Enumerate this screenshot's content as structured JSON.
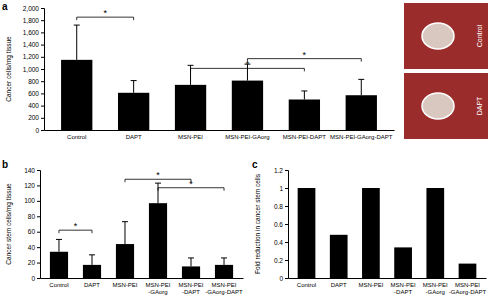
{
  "chart_data": [
    {
      "type": "bar",
      "title": "a",
      "y_label": "Cancer cells/mg tissue",
      "categories": [
        "Control",
        "DAPT",
        "MSN-PEI",
        "MSN-PEI-GAorg",
        "MSN-PEI-DAPT",
        "MSN-PEI-GAorg-DAPT"
      ],
      "values": [
        1150,
        610,
        740,
        810,
        500,
        570
      ],
      "errors": [
        570,
        200,
        320,
        270,
        140,
        260
      ],
      "color": "#000000",
      "ylim": [
        0,
        2000
      ],
      "yticks": [
        0,
        200,
        400,
        600,
        800,
        {
          "value": 1000,
          "label": "1,000"
        },
        {
          "value": 1200,
          "label": "1,200"
        },
        {
          "value": 1400,
          "label": "1,400"
        },
        {
          "value": 1600,
          "label": "1,600"
        },
        {
          "value": 1800,
          "label": "1,800"
        },
        {
          "value": 2000,
          "label": "2,000"
        }
      ],
      "significance": [
        {
          "from": "Control",
          "to": "DAPT",
          "y": 1850,
          "label": "*"
        },
        {
          "from": "MSN-PEI-GAorg",
          "to": "MSN-PEI-GAorg-DAPT",
          "y": 1170,
          "label": "*"
        },
        {
          "from": "MSN-PEI",
          "to": "MSN-PEI-DAPT",
          "y": 1010,
          "label": "*"
        }
      ],
      "annotations": [
        "Control",
        "DAPT"
      ]
    },
    {
      "type": "bar",
      "title": "b",
      "y_label": "Cancer stem cells/mg tissue",
      "categories": [
        "Control",
        "DAPT",
        "MSN-PEI",
        "MSN-PEI\n-GAorg",
        "MSN-PEI\n-DAPT",
        "MSN-PEI\n-GAorg-DAPT"
      ],
      "values": [
        34,
        17,
        44,
        97,
        15,
        17
      ],
      "errors": [
        16,
        13,
        29,
        26,
        11,
        9
      ],
      "color": "#000000",
      "ylim": [
        0,
        140
      ],
      "yticks": [
        0,
        20,
        40,
        60,
        80,
        100,
        120,
        140
      ],
      "significance": [
        {
          "from": "Control",
          "to": "DAPT",
          "y": 62,
          "label": "*"
        },
        {
          "from": "MSN-PEI",
          "to": "MSN-PEI\n-DAPT",
          "y": 128,
          "label": "*"
        },
        {
          "from": "MSN-PEI\n-GAorg",
          "to": "MSN-PEI\n-GAorg-DAPT",
          "y": 117,
          "label": "*"
        }
      ]
    },
    {
      "type": "bar",
      "title": "c",
      "y_label": "Fold reduction in cancer stem cells",
      "categories": [
        "Control",
        "DAPT",
        "MSN-PEI",
        "MSN-PEI\n-DAPT",
        "MSN-PEI\n-GAorg",
        "MSN-PEI\n-GAorg-DAPT"
      ],
      "values": [
        1,
        0.48,
        1,
        0.34,
        1,
        0.16
      ],
      "color": "#000000",
      "ylim": [
        0,
        1.2
      ],
      "yticks": [
        0,
        0.2,
        0.4,
        0.6,
        0.8,
        1,
        1.2
      ]
    }
  ]
}
